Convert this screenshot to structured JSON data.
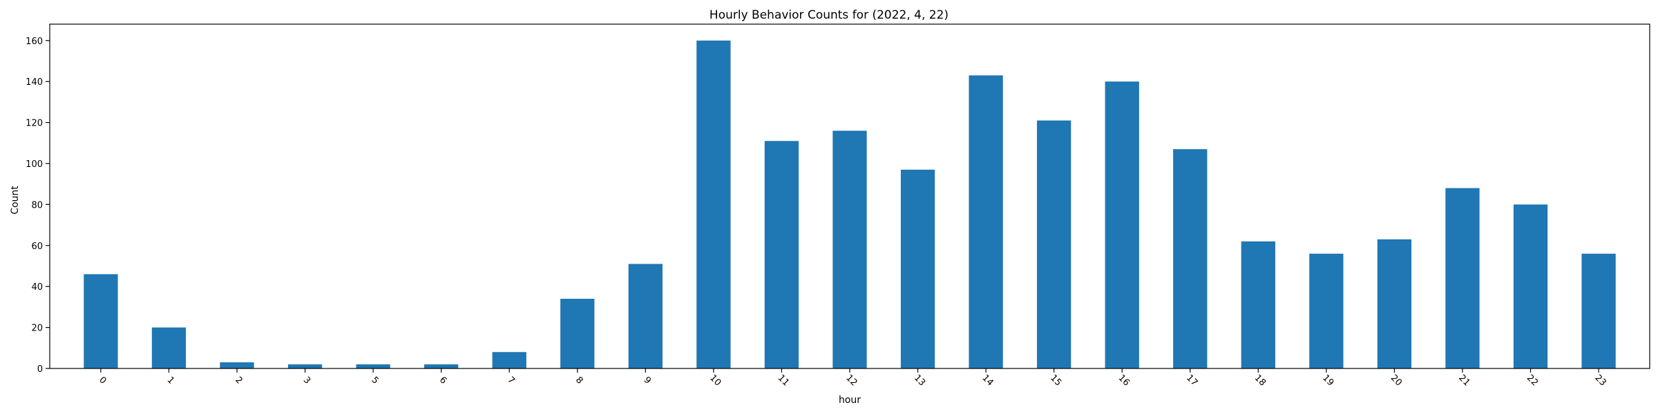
{
  "chart_data": {
    "type": "bar",
    "title": "Hourly Behavior Counts for (2022, 4, 22)",
    "xlabel": "hour",
    "ylabel": "Count",
    "categories": [
      "0",
      "1",
      "2",
      "3",
      "5",
      "6",
      "7",
      "8",
      "9",
      "10",
      "11",
      "12",
      "13",
      "14",
      "15",
      "16",
      "17",
      "18",
      "19",
      "20",
      "21",
      "22",
      "23"
    ],
    "values": [
      46,
      20,
      3,
      2,
      2,
      2,
      8,
      34,
      51,
      160,
      111,
      116,
      97,
      143,
      121,
      140,
      107,
      62,
      56,
      63,
      88,
      80,
      56
    ],
    "ylim": [
      0,
      168
    ],
    "yticks": [
      "0",
      "20",
      "40",
      "60",
      "80",
      "100",
      "120",
      "140",
      "160"
    ],
    "bar_color": "#1f77b4",
    "grid": false,
    "legend": "none"
  }
}
